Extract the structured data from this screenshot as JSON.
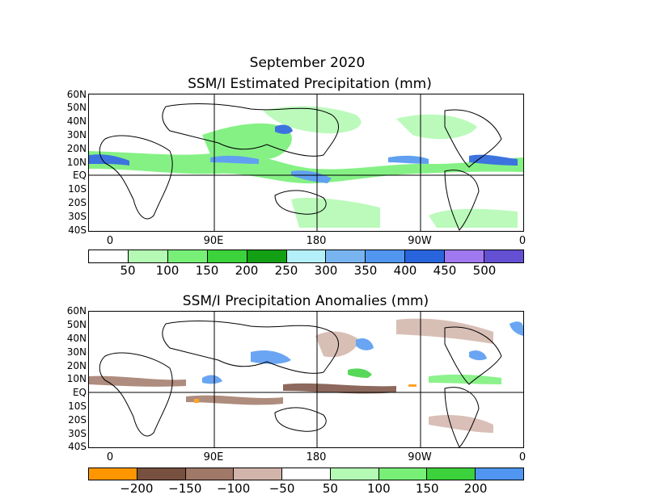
{
  "title_month": "September 2020",
  "panel1": {
    "title": "SSM/I Estimated Precipitation (mm)",
    "lat_labels": [
      "60N",
      "50N",
      "40N",
      "30N",
      "20N",
      "10N",
      "EQ",
      "10S",
      "20S",
      "30S",
      "40S"
    ],
    "lon_labels": [
      "0",
      "90E",
      "180",
      "90W",
      "0"
    ],
    "colorbar": {
      "colors": [
        "#ffffff",
        "#b4fab4",
        "#78f078",
        "#3cd23c",
        "#14a014",
        "#b4f0fa",
        "#78b4f0",
        "#5096f0",
        "#2864dc",
        "#a078f0",
        "#6450d2"
      ],
      "labels": [
        "50",
        "100",
        "150",
        "200",
        "250",
        "300",
        "350",
        "400",
        "450",
        "500"
      ]
    }
  },
  "panel2": {
    "title": "SSM/I Precipitation Anomalies (mm)",
    "lat_labels": [
      "60N",
      "50N",
      "40N",
      "30N",
      "20N",
      "10N",
      "EQ",
      "10S",
      "20S",
      "30S",
      "40S"
    ],
    "lon_labels": [
      "0",
      "90E",
      "180",
      "90W",
      "0"
    ],
    "colorbar": {
      "colors": [
        "#ff9600",
        "#785040",
        "#a07868",
        "#d2b4aa",
        "#ffffff",
        "#b4fab4",
        "#78f078",
        "#3cd23c",
        "#5096f0"
      ],
      "labels": [
        "−200",
        "−150",
        "−100",
        "−50",
        "50",
        "100",
        "150",
        "200"
      ]
    }
  }
}
